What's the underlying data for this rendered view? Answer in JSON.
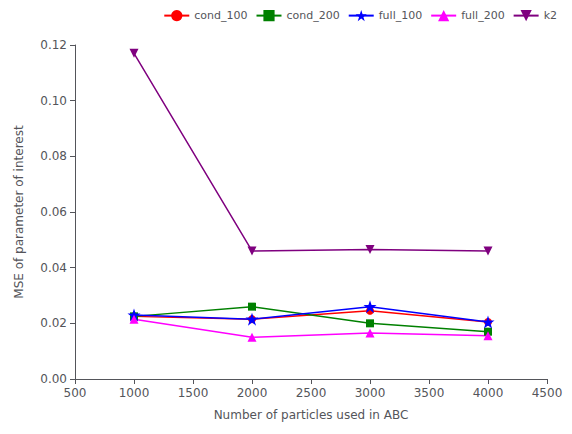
{
  "chart_data": {
    "type": "line",
    "xlabel": "Number of particles used in ABC",
    "ylabel": "MSE of parameter of interest",
    "x": [
      1000,
      2000,
      3000,
      4000
    ],
    "series": [
      {
        "name": "cond_100",
        "color": "#ff0000",
        "marker": "circle",
        "values": [
          0.0225,
          0.0215,
          0.0245,
          0.0205
        ]
      },
      {
        "name": "cond_200",
        "color": "#008000",
        "marker": "square",
        "values": [
          0.0225,
          0.026,
          0.02,
          0.017
        ]
      },
      {
        "name": "full_100",
        "color": "#0000ff",
        "marker": "star",
        "values": [
          0.023,
          0.0215,
          0.026,
          0.0205
        ]
      },
      {
        "name": "full_200",
        "color": "#ff00ff",
        "marker": "triangle",
        "values": [
          0.0215,
          0.015,
          0.0165,
          0.0155
        ]
      },
      {
        "name": "k2",
        "color": "#7f007f",
        "marker": "triangle_down",
        "values": [
          0.117,
          0.046,
          0.0465,
          0.046
        ]
      }
    ],
    "xlim": [
      500,
      4500
    ],
    "xticks": [
      500,
      1000,
      1500,
      2000,
      2500,
      3000,
      3500,
      4000,
      4500
    ],
    "ylim": [
      0.0,
      0.12
    ],
    "yticks": [
      {
        "value": 0,
        "label": "0.00"
      },
      0.02,
      0.04,
      0.06,
      0.08,
      {
        "value": 0.1,
        "label": "0.10"
      },
      0.12
    ],
    "grid": false,
    "legend": "upper right"
  }
}
